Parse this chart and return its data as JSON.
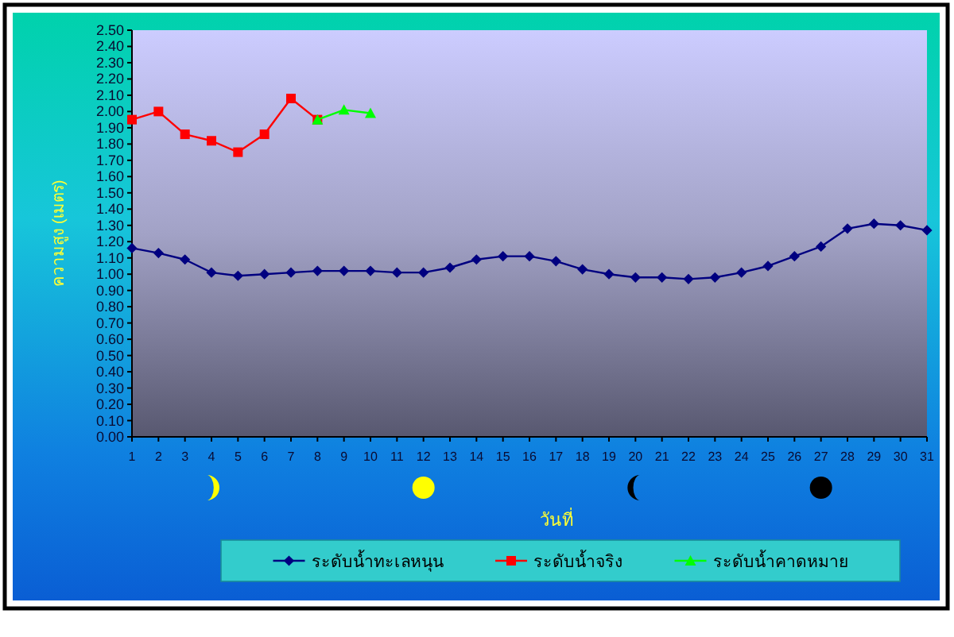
{
  "chart_data": {
    "type": "line",
    "ylabel": "ความสูง (เมตร)",
    "xlabel": "วันที่",
    "categories": [
      "1",
      "2",
      "3",
      "4",
      "5",
      "6",
      "7",
      "8",
      "9",
      "10",
      "11",
      "12",
      "13",
      "14",
      "15",
      "16",
      "17",
      "18",
      "19",
      "20",
      "21",
      "22",
      "23",
      "24",
      "25",
      "26",
      "27",
      "28",
      "29",
      "30",
      "31"
    ],
    "series": [
      {
        "name": "ระดับน้ำทะเลหนุน",
        "color": "#000080",
        "marker": "diamond",
        "values": [
          1.16,
          1.13,
          1.09,
          1.01,
          0.99,
          1.0,
          1.01,
          1.02,
          1.02,
          1.02,
          1.01,
          1.01,
          1.04,
          1.09,
          1.11,
          1.11,
          1.08,
          1.03,
          1.0,
          0.98,
          0.98,
          0.97,
          0.98,
          1.01,
          1.05,
          1.11,
          1.17,
          1.28,
          1.31,
          1.3,
          1.27
        ]
      },
      {
        "name": "ระดับน้ำจริง",
        "color": "#ff0000",
        "marker": "square",
        "values": [
          1.95,
          2.0,
          1.86,
          1.82,
          1.75,
          1.86,
          2.08,
          1.95,
          null,
          null,
          null,
          null,
          null,
          null,
          null,
          null,
          null,
          null,
          null,
          null,
          null,
          null,
          null,
          null,
          null,
          null,
          null,
          null,
          null,
          null,
          null
        ]
      },
      {
        "name": "ระดับน้ำคาดหมาย",
        "color": "#00ff00",
        "marker": "triangle",
        "values": [
          null,
          null,
          null,
          null,
          null,
          null,
          null,
          1.95,
          2.01,
          1.99,
          null,
          null,
          null,
          null,
          null,
          null,
          null,
          null,
          null,
          null,
          null,
          null,
          null,
          null,
          null,
          null,
          null,
          null,
          null,
          null,
          null
        ]
      }
    ],
    "ylim": [
      0,
      2.5
    ],
    "yticks": [
      {
        "value": 0,
        "label": "0.00"
      },
      {
        "value": 0.1,
        "label": "0.10"
      },
      {
        "value": 0.2,
        "label": "0.20"
      },
      {
        "value": 0.3,
        "label": "0.30"
      },
      {
        "value": 0.4,
        "label": "0.40"
      },
      {
        "value": 0.5,
        "label": "0.50"
      },
      {
        "value": 0.6,
        "label": "0.60"
      },
      {
        "value": 0.7,
        "label": "0.70"
      },
      {
        "value": 0.8,
        "label": "0.80"
      },
      {
        "value": 0.9,
        "label": "0.90"
      },
      {
        "value": 1,
        "label": "1.00"
      },
      {
        "value": 1.1,
        "label": "1.10"
      },
      {
        "value": 1.2,
        "label": "1.20"
      },
      {
        "value": 1.3,
        "label": "1.30"
      },
      {
        "value": 1.4,
        "label": "1.40"
      },
      {
        "value": 1.5,
        "label": "1.50"
      },
      {
        "value": 1.6,
        "label": "1.60"
      },
      {
        "value": 1.7,
        "label": "1.70"
      },
      {
        "value": 1.8,
        "label": "1.80"
      },
      {
        "value": 1.9,
        "label": "1.90"
      },
      {
        "value": 2,
        "label": "2.00"
      },
      {
        "value": 2.1,
        "label": "2.10"
      },
      {
        "value": 2.2,
        "label": "2.20"
      },
      {
        "value": 2.3,
        "label": "2.30"
      },
      {
        "value": 2.4,
        "label": "2.40"
      },
      {
        "value": 2.5,
        "label": "2.50"
      }
    ],
    "legend": "bottom"
  }
}
